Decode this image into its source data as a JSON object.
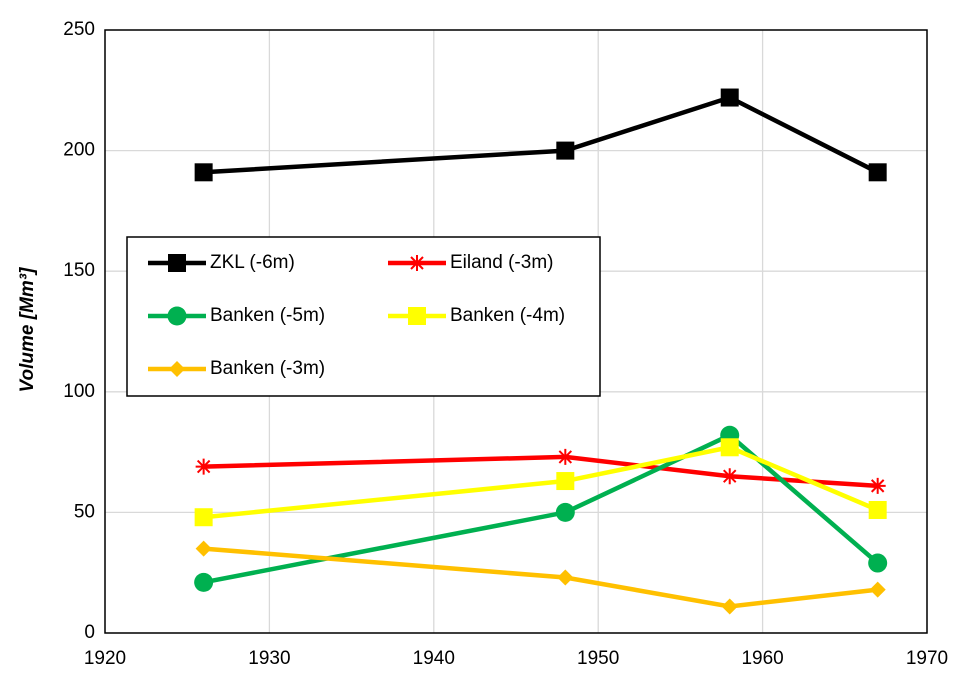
{
  "chart_data": {
    "type": "line",
    "y_label": "Volume [Mm³]",
    "x": [
      1926,
      1948,
      1958,
      1967
    ],
    "series": [
      {
        "name": "ZKL (-6m)",
        "color": "#000000",
        "marker": "square",
        "values": [
          191,
          200,
          222,
          191
        ]
      },
      {
        "name": "Eiland (-3m)",
        "color": "#ff0000",
        "marker": "asterisk",
        "values": [
          69,
          73,
          65,
          61
        ]
      },
      {
        "name": "Banken (-5m)",
        "color": "#00b050",
        "marker": "circle",
        "values": [
          21,
          50,
          82,
          29
        ]
      },
      {
        "name": "Banken (-4m)",
        "color": "#ffff00",
        "marker": "square",
        "values": [
          48,
          63,
          77,
          51
        ]
      },
      {
        "name": "Banken (-3m)",
        "color": "#ffc000",
        "marker": "diamond",
        "values": [
          35,
          23,
          11,
          18
        ]
      }
    ],
    "xlim": [
      1920,
      1970
    ],
    "xticks": [
      1920,
      1930,
      1940,
      1950,
      1960,
      1970
    ],
    "ylim": [
      0,
      250
    ],
    "yticks": [
      0,
      50,
      100,
      150,
      200,
      250
    ],
    "grid": true
  }
}
